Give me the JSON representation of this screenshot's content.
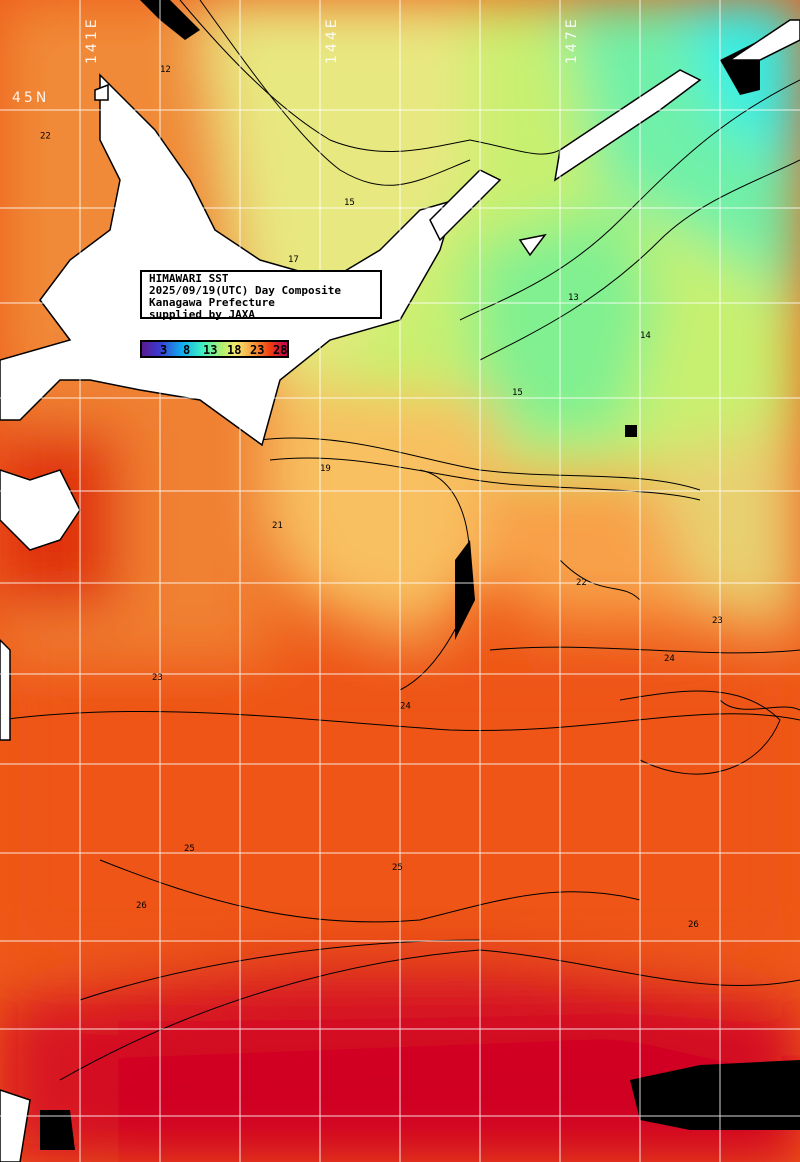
{
  "title_box": {
    "line1": "HIMAWARI SST",
    "line2": "2025/09/19(UTC) Day Composite",
    "line3": "Kanagawa Prefecture",
    "line4": "supplied by JAXA"
  },
  "legend": {
    "ticks": [
      "3",
      "8",
      "13",
      "18",
      "23",
      "28"
    ],
    "colors": [
      "#5a1a90",
      "#3a3ad0",
      "#10b0f0",
      "#40f0c0",
      "#b0f070",
      "#f8e870",
      "#f8a040",
      "#f04010",
      "#c00050"
    ]
  },
  "axes": {
    "longitudes": [
      "141E",
      "144E",
      "147E"
    ],
    "latitudes": [
      "45N"
    ]
  },
  "contour_labels": [
    {
      "text": "22",
      "lon": 140.5,
      "lat": 44.7
    },
    {
      "text": "12",
      "lon": 142.0,
      "lat": 45.4
    },
    {
      "text": "15",
      "lon": 144.3,
      "lat": 44.0
    },
    {
      "text": "17",
      "lon": 143.6,
      "lat": 43.4
    },
    {
      "text": "13",
      "lon": 147.1,
      "lat": 43.0
    },
    {
      "text": "14",
      "lon": 148.0,
      "lat": 42.6
    },
    {
      "text": "15",
      "lon": 146.4,
      "lat": 42.0
    },
    {
      "text": "19",
      "lon": 144.0,
      "lat": 41.2
    },
    {
      "text": "21",
      "lon": 143.4,
      "lat": 40.6
    },
    {
      "text": "22",
      "lon": 147.2,
      "lat": 40.0
    },
    {
      "text": "23",
      "lon": 148.9,
      "lat": 39.6
    },
    {
      "text": "24",
      "lon": 148.3,
      "lat": 39.2
    },
    {
      "text": "23",
      "lon": 141.9,
      "lat": 39.0
    },
    {
      "text": "24",
      "lon": 145.0,
      "lat": 38.7
    },
    {
      "text": "25",
      "lon": 142.3,
      "lat": 37.2
    },
    {
      "text": "26",
      "lon": 141.7,
      "lat": 36.6
    },
    {
      "text": "25",
      "lon": 144.9,
      "lat": 37.0
    },
    {
      "text": "26",
      "lon": 148.6,
      "lat": 36.4
    }
  ],
  "colors": {
    "land": "#ffffff",
    "grid": "#ffffff",
    "cloud": "#000000"
  }
}
